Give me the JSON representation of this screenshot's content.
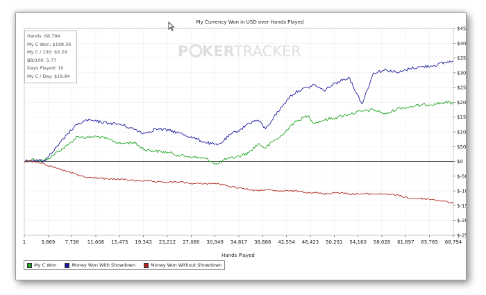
{
  "colors": {
    "green": "#1fa41f",
    "blue": "#1a1a9e",
    "red": "#b0281c",
    "watermark": "#dedede"
  },
  "watermark": {
    "part1": "P",
    "part2": "KER",
    "part3": "TRACKER"
  },
  "stats": {
    "hands": "Hands: 68,794",
    "won": "My C Won: $198.36",
    "per100": "My C / 100: $0.29",
    "bb100": "BB/100: 5.77",
    "days": "Days Played: 10",
    "perday": "My C / Day: $19.84"
  },
  "legend": [
    {
      "label": "My C Won",
      "color": "#1fa41f"
    },
    {
      "label": "Money Won With Showdown",
      "color": "#1a1a9e"
    },
    {
      "label": "Money Won Without Showdown",
      "color": "#b0281c"
    }
  ],
  "chart_data": {
    "type": "line",
    "title": "My Currency Won in USD over Hands Played",
    "xlabel": "Hands Played",
    "ylabel": "",
    "xlim": [
      1,
      68794
    ],
    "ylim": [
      -250,
      450
    ],
    "x_ticks": [
      "1",
      "3,869",
      "7,738",
      "11,606",
      "15,475",
      "19,343",
      "23,212",
      "27,080",
      "30,949",
      "34,817",
      "38,686",
      "42,554",
      "46,423",
      "50,291",
      "54,160",
      "58,028",
      "61,897",
      "65,765",
      "68,794"
    ],
    "y_ticks": [
      "$450",
      "$400",
      "$350",
      "$300",
      "$250",
      "$200",
      "$150",
      "$100",
      "$50",
      "$0",
      "$-50",
      "$-100",
      "$-150",
      "$-200",
      "$-250"
    ],
    "y_tick_values": [
      450,
      400,
      350,
      300,
      250,
      200,
      150,
      100,
      50,
      0,
      -50,
      -100,
      -150,
      -200,
      -250
    ],
    "grid": true,
    "legend_position": "bottom-left",
    "series": [
      {
        "name": "My C Won",
        "color": "#1fa41f",
        "x": [
          1,
          1500,
          3000,
          3869,
          5500,
          7000,
          8500,
          10000,
          11606,
          13500,
          15475,
          17500,
          19343,
          21000,
          23212,
          25000,
          27080,
          29000,
          30000,
          30949,
          32000,
          33000,
          34817,
          36000,
          37500,
          38686,
          40000,
          41500,
          42554,
          44000,
          45500,
          46423,
          48000,
          50291,
          52000,
          54160,
          56000,
          58028,
          60000,
          61897,
          63500,
          65765,
          67500,
          68794
        ],
        "values": [
          0,
          8,
          2,
          10,
          35,
          55,
          85,
          80,
          85,
          75,
          60,
          65,
          40,
          35,
          30,
          20,
          15,
          10,
          0,
          -10,
          5,
          10,
          20,
          30,
          60,
          45,
          70,
          90,
          120,
          140,
          155,
          130,
          140,
          150,
          160,
          170,
          175,
          160,
          180,
          185,
          190,
          195,
          200,
          198
        ]
      },
      {
        "name": "Money Won With Showdown",
        "color": "#1a1a9e",
        "x": [
          1,
          1500,
          3000,
          3869,
          5500,
          7000,
          8500,
          10000,
          11606,
          13500,
          15475,
          17500,
          19343,
          21000,
          23212,
          25000,
          27080,
          29000,
          30000,
          30949,
          32000,
          33000,
          34817,
          36000,
          37500,
          38686,
          40000,
          41500,
          42554,
          44000,
          45500,
          46423,
          48000,
          50291,
          52000,
          54160,
          56000,
          58028,
          60000,
          61897,
          63500,
          65765,
          67500,
          68794
        ],
        "values": [
          0,
          5,
          0,
          15,
          55,
          95,
          125,
          140,
          135,
          130,
          125,
          110,
          95,
          110,
          105,
          95,
          80,
          65,
          60,
          55,
          70,
          90,
          110,
          130,
          140,
          110,
          150,
          190,
          220,
          240,
          250,
          260,
          240,
          270,
          285,
          195,
          300,
          310,
          300,
          315,
          320,
          325,
          335,
          340
        ]
      },
      {
        "name": "Money Won Without Showdown",
        "color": "#b0281c",
        "x": [
          1,
          1500,
          3000,
          3869,
          5500,
          7000,
          8500,
          10000,
          11606,
          13500,
          15475,
          17500,
          19343,
          21000,
          23212,
          25000,
          27080,
          29000,
          30000,
          30949,
          32000,
          33000,
          34817,
          36000,
          37500,
          38686,
          40000,
          41500,
          42554,
          44000,
          45500,
          46423,
          48000,
          50291,
          52000,
          54160,
          56000,
          58028,
          60000,
          61897,
          63500,
          65765,
          67500,
          68794
        ],
        "values": [
          0,
          0,
          -5,
          -15,
          -25,
          -35,
          -45,
          -55,
          -55,
          -60,
          -60,
          -65,
          -65,
          -70,
          -70,
          -70,
          -75,
          -75,
          -75,
          -75,
          -80,
          -85,
          -90,
          -95,
          -100,
          -95,
          -100,
          -100,
          -100,
          -100,
          -105,
          -105,
          -110,
          -105,
          -110,
          -110,
          -110,
          -110,
          -115,
          -125,
          -125,
          -130,
          -135,
          -143
        ]
      }
    ]
  }
}
